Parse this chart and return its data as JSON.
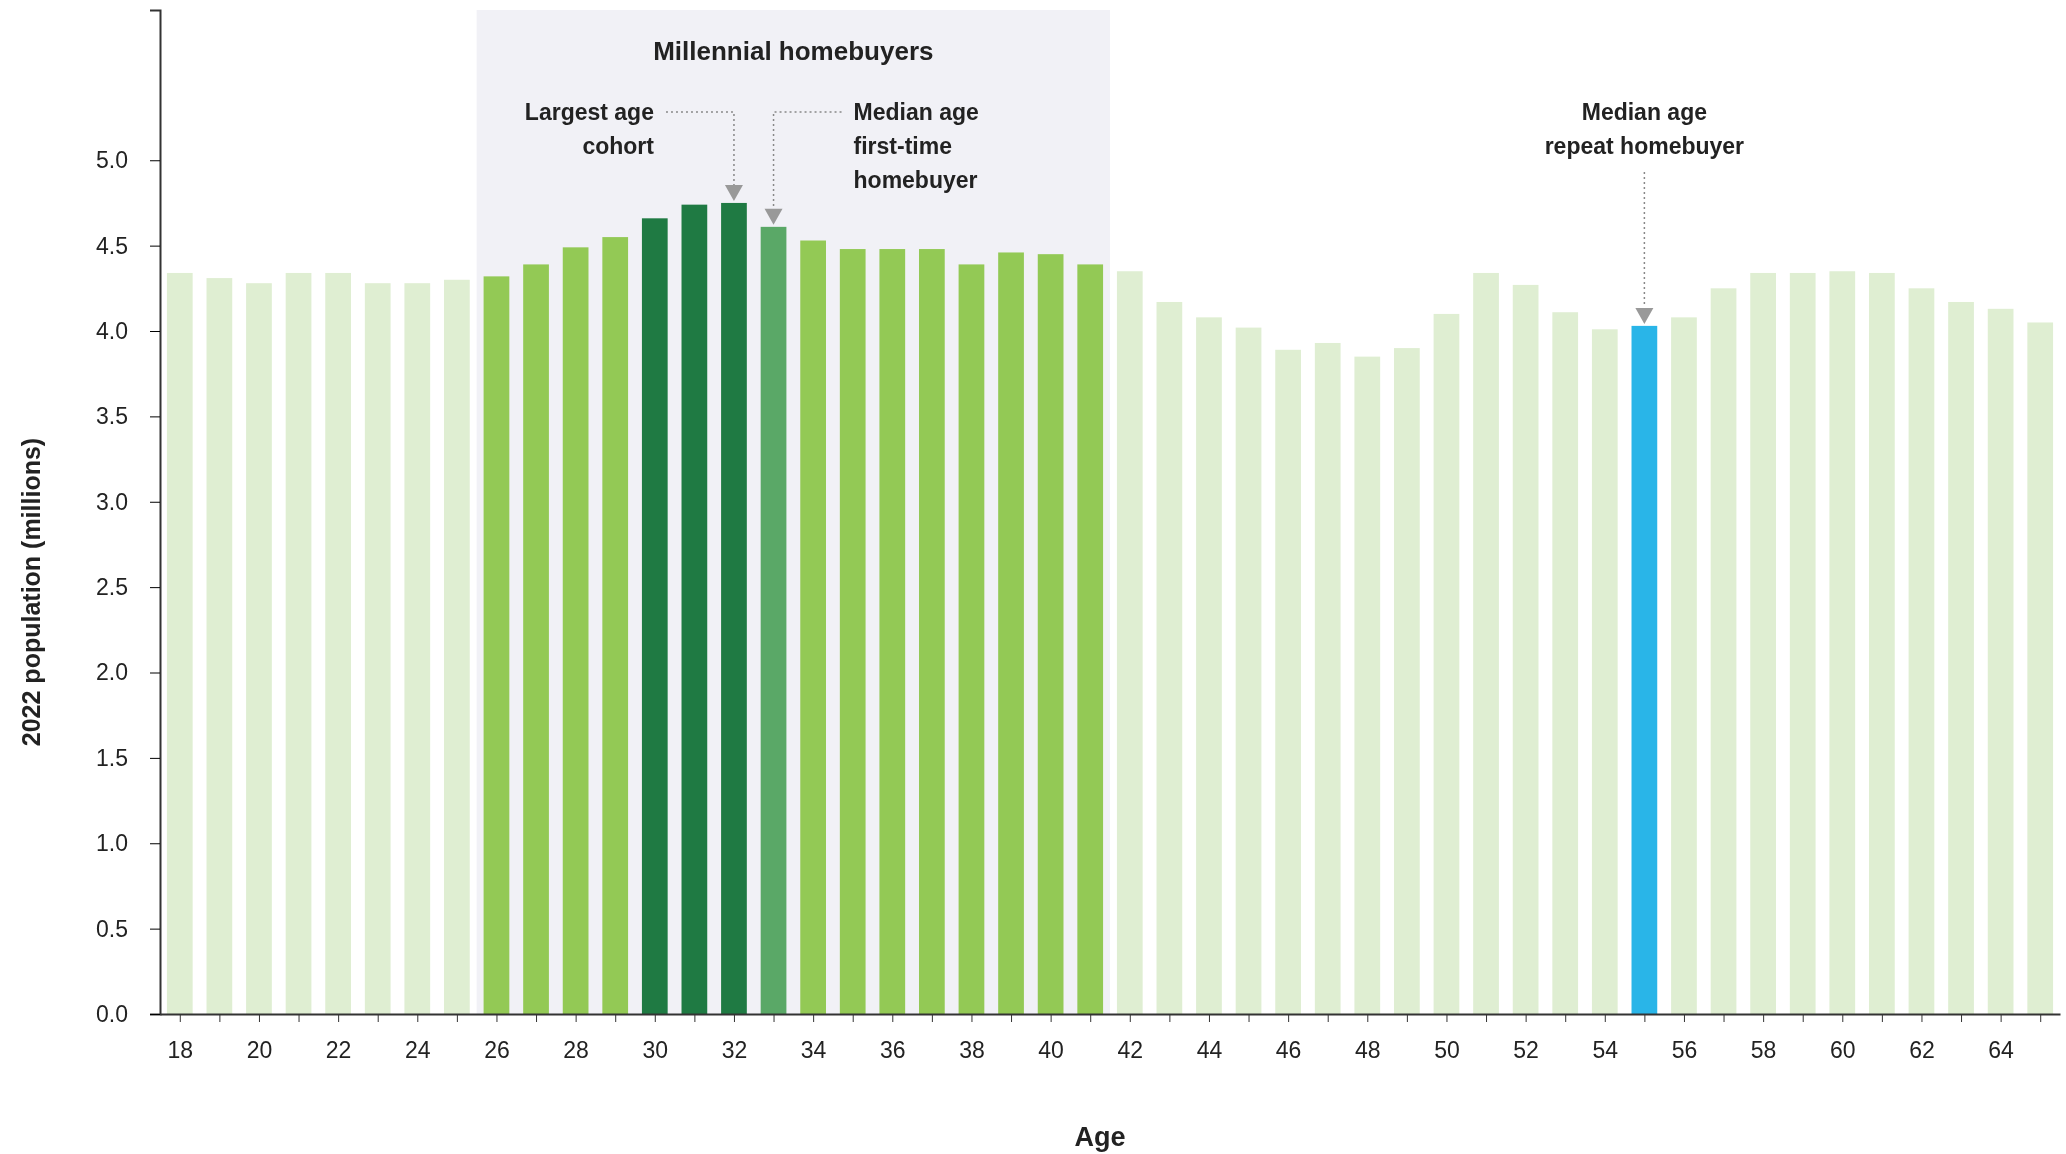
{
  "chart_data": {
    "type": "bar",
    "xlabel": "Age",
    "ylabel": "2022 population (millions)",
    "x": [
      18,
      19,
      20,
      21,
      22,
      23,
      24,
      25,
      26,
      27,
      28,
      29,
      30,
      31,
      32,
      33,
      34,
      35,
      36,
      37,
      38,
      39,
      40,
      41,
      42,
      43,
      44,
      45,
      46,
      47,
      48,
      49,
      50,
      51,
      52,
      53,
      54,
      55,
      56,
      57,
      58,
      59,
      60,
      61,
      62,
      63,
      64,
      65
    ],
    "values": [
      4.34,
      4.31,
      4.28,
      4.34,
      4.34,
      4.28,
      4.28,
      4.3,
      4.32,
      4.39,
      4.49,
      4.55,
      4.66,
      4.74,
      4.75,
      4.61,
      4.53,
      4.48,
      4.48,
      4.48,
      4.39,
      4.46,
      4.45,
      4.39,
      4.35,
      4.17,
      4.08,
      4.02,
      3.89,
      3.93,
      3.85,
      3.9,
      4.1,
      4.34,
      4.27,
      4.11,
      4.01,
      4.03,
      4.08,
      4.25,
      4.34,
      4.34,
      4.35,
      4.34,
      4.25,
      4.17,
      4.13,
      4.05
    ],
    "colors": [
      "#dfeed2",
      "#dfeed2",
      "#dfeed2",
      "#dfeed2",
      "#dfeed2",
      "#dfeed2",
      "#dfeed2",
      "#dfeed2",
      "#93c955",
      "#93c955",
      "#93c955",
      "#93c955",
      "#1f7a43",
      "#1f7a43",
      "#1f7a43",
      "#5aa867",
      "#93c955",
      "#93c955",
      "#93c955",
      "#93c955",
      "#93c955",
      "#93c955",
      "#93c955",
      "#93c955",
      "#dfeed2",
      "#dfeed2",
      "#dfeed2",
      "#dfeed2",
      "#dfeed2",
      "#dfeed2",
      "#dfeed2",
      "#dfeed2",
      "#dfeed2",
      "#dfeed2",
      "#dfeed2",
      "#dfeed2",
      "#dfeed2",
      "#29b5e8",
      "#dfeed2",
      "#dfeed2",
      "#dfeed2",
      "#dfeed2",
      "#dfeed2",
      "#dfeed2",
      "#dfeed2",
      "#dfeed2",
      "#dfeed2",
      "#dfeed2"
    ],
    "xlim": [
      17.5,
      65.5
    ],
    "xticks": [
      18,
      {
        "value": 19,
        "label": null
      },
      20,
      {
        "value": 21,
        "label": null
      },
      22,
      {
        "value": 23,
        "label": null
      },
      24,
      {
        "value": 25,
        "label": null
      },
      26,
      {
        "value": 27,
        "label": null
      },
      28,
      {
        "value": 29,
        "label": null
      },
      30,
      {
        "value": 31,
        "label": null
      },
      32,
      {
        "value": 33,
        "label": null
      },
      34,
      {
        "value": 35,
        "label": null
      },
      36,
      {
        "value": 37,
        "label": null
      },
      38,
      {
        "value": 39,
        "label": null
      },
      40,
      {
        "value": 41,
        "label": null
      },
      42,
      {
        "value": 43,
        "label": null
      },
      44,
      {
        "value": 45,
        "label": null
      },
      46,
      {
        "value": 47,
        "label": null
      },
      48,
      {
        "value": 49,
        "label": null
      },
      50,
      {
        "value": 51,
        "label": null
      },
      52,
      {
        "value": 53,
        "label": null
      },
      54,
      {
        "value": 55,
        "label": null
      },
      56,
      {
        "value": 57,
        "label": null
      },
      58,
      {
        "value": 59,
        "label": null
      },
      60,
      {
        "value": 61,
        "label": null
      },
      62,
      {
        "value": 63,
        "label": null
      },
      64,
      {
        "value": 65,
        "label": null
      }
    ],
    "ylim": [
      0,
      5.88
    ],
    "yticks": [
      {
        "value": 0,
        "label": "0.0"
      },
      {
        "value": 0.5,
        "label": "0.5"
      },
      {
        "value": 1,
        "label": "1.0"
      },
      {
        "value": 1.5,
        "label": "1.5"
      },
      {
        "value": 2,
        "label": "2.0"
      },
      {
        "value": 2.5,
        "label": "2.5"
      },
      {
        "value": 3,
        "label": "3.0"
      },
      {
        "value": 3.5,
        "label": "3.5"
      },
      {
        "value": 4,
        "label": "4.0"
      },
      {
        "value": 4.5,
        "label": "4.5"
      },
      {
        "value": 5,
        "label": "5.0"
      }
    ],
    "bands": [
      {
        "axis": "x",
        "from": 25.5,
        "to": 41.5,
        "label": "Millennial homebuyers",
        "color": "#f1f1f6"
      }
    ],
    "annotations": [
      "Largest age cohort",
      "Median age first-time homebuyer",
      "Median age repeat homebuyer"
    ],
    "grid": false
  }
}
